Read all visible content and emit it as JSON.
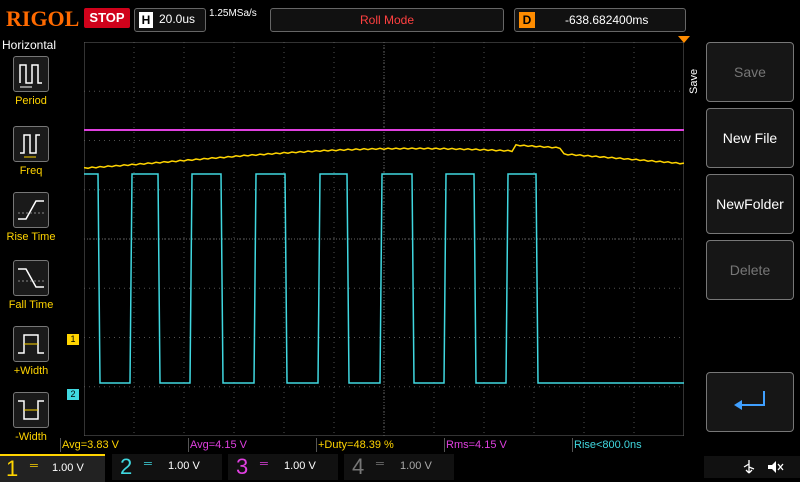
{
  "header": {
    "logo": "RIGOL",
    "run_state": "STOP",
    "timebase_label": "H",
    "timebase_value": "20.0us",
    "sample_rate": "1.25MSa/s",
    "mode": "Roll Mode",
    "delay_label": "D",
    "delay_value": "-638.682400ms"
  },
  "left_panel": {
    "title": "Horizontal",
    "items": [
      {
        "label": "Period",
        "icon": "period-icon"
      },
      {
        "label": "Freq",
        "icon": "freq-icon"
      },
      {
        "label": "Rise Time",
        "icon": "rise-time-icon"
      },
      {
        "label": "Fall Time",
        "icon": "fall-time-icon"
      },
      {
        "label": "+Width",
        "icon": "pos-width-icon"
      },
      {
        "label": "-Width",
        "icon": "neg-width-icon"
      }
    ]
  },
  "right_panel": {
    "section_label": "Save",
    "buttons": [
      {
        "label": "Save",
        "enabled": false
      },
      {
        "label": "New File",
        "enabled": true
      },
      {
        "label": "NewFolder",
        "enabled": true
      },
      {
        "label": "Delete",
        "enabled": false
      }
    ],
    "enter_icon": "return-arrow-icon"
  },
  "markers": {
    "ch1_marker": "1",
    "ch2_marker": "2"
  },
  "measurements": [
    {
      "text": "Avg=3.83 V",
      "color": "#ffd400"
    },
    {
      "text": "Avg=4.15 V",
      "color": "#e040e0"
    },
    {
      "text": "+Duty=48.39 %",
      "color": "#ffd400"
    },
    {
      "text": "Rms=4.15 V",
      "color": "#e040e0"
    },
    {
      "text": "Rise<800.0ns",
      "color": "#40e0e0"
    }
  ],
  "channels": [
    {
      "num": "1",
      "value": "1.00 V",
      "color": "#ffd400",
      "active": true
    },
    {
      "num": "2",
      "value": "1.00 V",
      "color": "#40d8e0",
      "active": false
    },
    {
      "num": "3",
      "value": "1.00 V",
      "color": "#e040e0",
      "active": false
    },
    {
      "num": "4",
      "value": "1.00 V",
      "color": "#8899ff",
      "active": false
    }
  ],
  "status_icons": [
    "usb-icon",
    "speaker-muted-icon"
  ],
  "colors": {
    "ch1": "#ffd400",
    "ch2": "#40d8e0",
    "ch3": "#e040e0",
    "ch4": "#6e7bff",
    "grid": "#555555",
    "brand": "#ff6a00"
  }
}
